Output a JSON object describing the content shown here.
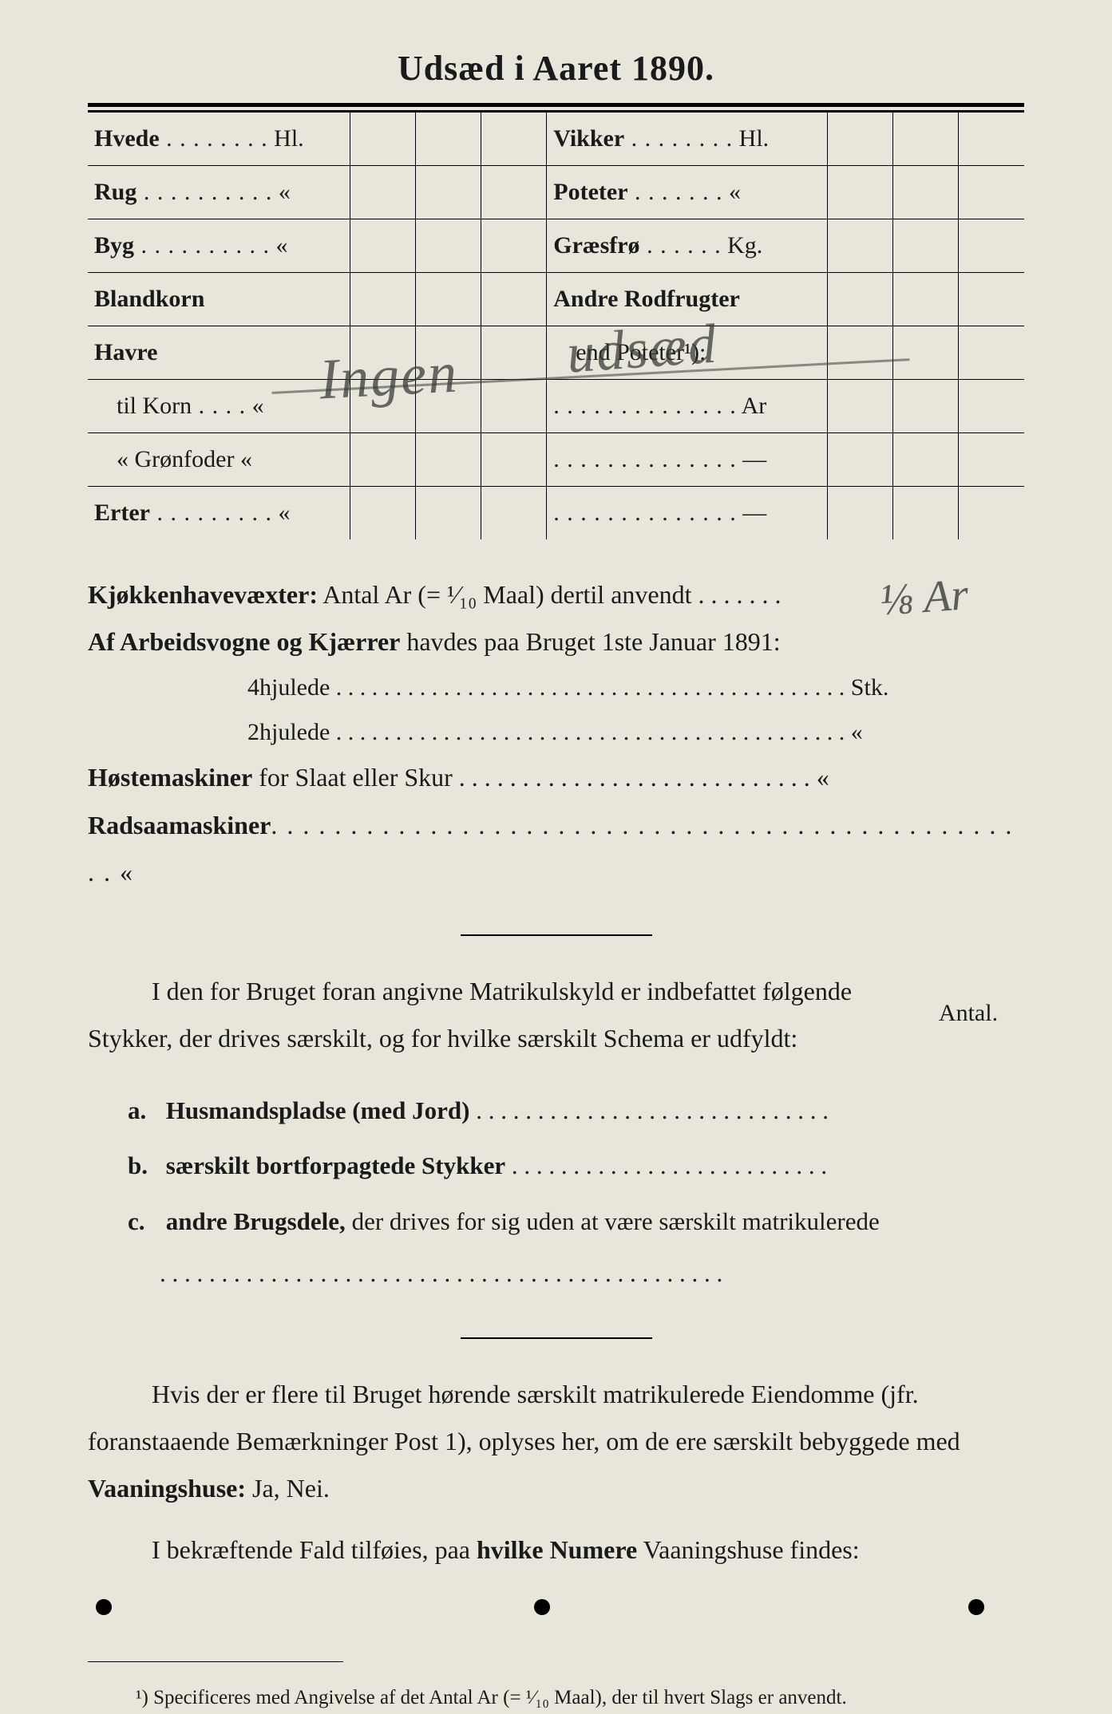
{
  "title": "Udsæd i Aaret 1890.",
  "grid": {
    "left": [
      {
        "label": "Hvede",
        "dots": ". . . . . . . .",
        "unit": "Hl."
      },
      {
        "label": "Rug",
        "dots": ". . . . . . . . . .",
        "unit": "«"
      },
      {
        "label": "Byg",
        "dots": ". . . . . . . . . .",
        "unit": "«"
      },
      {
        "label": "Blandkorn",
        "dots": "",
        "unit": ""
      },
      {
        "label": "Havre",
        "dots": "",
        "unit": ""
      },
      {
        "label": "til Korn",
        "dots": ". . . .",
        "unit": "«",
        "indent": true
      },
      {
        "label": "«  Grønfoder",
        "dots": "",
        "unit": "«",
        "indent": true
      },
      {
        "label": "Erter",
        "dots": ". . . . . . . . .",
        "unit": "«"
      }
    ],
    "right": [
      {
        "label": "Vikker",
        "dots": ". . . . . . . .",
        "unit": "Hl."
      },
      {
        "label": "Poteter",
        "dots": ". . . . . . .",
        "unit": "«"
      },
      {
        "label": "Græsfrø",
        "dots": ". . . . . .",
        "unit": "Kg."
      },
      {
        "label": "Andre Rodfrugter",
        "dots": "",
        "unit": ""
      },
      {
        "label": "end Poteter¹):",
        "dots": "",
        "unit": "",
        "indent": true
      },
      {
        "label": "",
        "dots": ". . . . . . . . . . . . . .",
        "unit": "Ar"
      },
      {
        "label": "",
        "dots": ". . . . . . . . . . . . . .",
        "unit": "—"
      },
      {
        "label": "",
        "dots": ". . . . . . . . . . . . . .",
        "unit": "—"
      }
    ]
  },
  "handwriting": {
    "across1": "Ingen",
    "across2": "udsæd",
    "kitchen": "⅛ Ar"
  },
  "lines": {
    "kjokken_label": "Kjøkkenhavevæxter:",
    "kjokken_text": " Antal Ar (= ¹⁄₁₀ Maal) dertil anvendt . . . . . . .",
    "vogne_label": "Af Arbeidsvogne og Kjærrer",
    "vogne_text": " havdes paa Bruget 1ste Januar 1891:",
    "hjul4": "4hjulede . . . . . . . . . . . . . . . . . . . . . . . . . . . . . . . . . . . . . . . . . . . Stk.",
    "hjul2": "2hjulede . . . . . . . . . . . . . . . . . . . . . . . . . . . . . . . . . . . . . . . . . . .   «",
    "hoste_label": "Høstemaskiner",
    "hoste_text": " for Slaat eller Skur . . . . . . . . . . . . . . . . . . . . . . . . . . . .   «",
    "radsaa_label": "Radsaamaskiner",
    "radsaa_text": ". . . . . . . . . . . . . . . . . . . . . . . . . . . . . . . . . . . . . . . . . . . . . . . . .   «"
  },
  "paragraph1a": "I den for Bruget foran angivne Matrikulskyld er indbefattet følgende Stykker, der drives særskilt, og for hvilke særskilt Schema er udfyldt:",
  "antal_label": "Antal.",
  "list": {
    "a_letter": "a.",
    "a_bold": "Husmandspladse (med Jord)",
    "a_dots": " . . . . . . . . . . . . . . . . . . . . . . . . . . . . .",
    "b_letter": "b.",
    "b_bold": "særskilt bortforpagtede Stykker",
    "b_dots": " . . . . . . . . . . . . . . . . . . . . . . . . . .",
    "c_letter": "c.",
    "c_bold": "andre Brugsdele,",
    "c_text": " der drives for sig uden at være særskilt matrikulerede ",
    "c_dots": ". . . . . . . . . . . . . . . . . . . . . . . . . . . . . . . . . . . . . . . . . . . . . ."
  },
  "paragraph2": "Hvis der er flere til Bruget hørende særskilt matrikulerede Eiendomme (jfr. foranstaaende Bemærkninger Post 1), oplyses her, om de ere særskilt bebyggede med ",
  "paragraph2_bold": "Vaaningshuse:",
  "paragraph2_tail": " Ja, Nei.",
  "paragraph3a": "I bekræftende Fald tilføies, paa ",
  "paragraph3_bold": "hvilke Numere",
  "paragraph3b": " Vaaningshuse findes:",
  "footnote": "¹) Specificeres med Angivelse af det Antal Ar (= ¹⁄₁₀ Maal), der til hvert Slags er anvendt."
}
